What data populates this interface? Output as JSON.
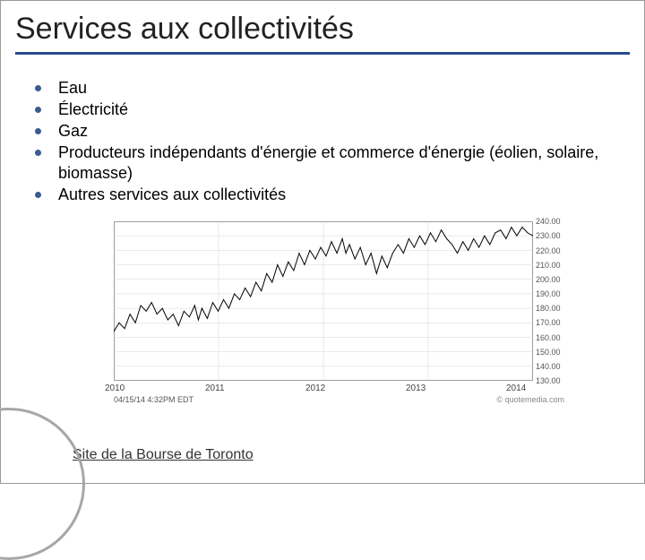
{
  "title": "Services aux collectivités",
  "bullets": [
    "Eau",
    "Électricité",
    "Gaz",
    "Producteurs indépendants d'énergie et commerce d'énergie (éolien, solaire, biomasse)",
    "Autres services aux collectivités"
  ],
  "footer_link": "Site de la Bourse de Toronto",
  "chart": {
    "type": "line",
    "ylim": [
      130,
      240
    ],
    "ytick_step": 10,
    "yticks": [
      "240.00",
      "230.00",
      "220.00",
      "210.00",
      "200.00",
      "190.00",
      "180.00",
      "170.00",
      "160.00",
      "150.00",
      "140.00",
      "130.00"
    ],
    "xticks": [
      "2010",
      "2011",
      "2012",
      "2013",
      "2014"
    ],
    "timestamp": "04/15/14 4:32PM EDT",
    "source": "© quotemedia.com",
    "background_color": "#ffffff",
    "border_color": "#888888",
    "grid_color": "#d6d6d6",
    "line_color": "#000000",
    "line_width": 1,
    "axis_font_size": 9,
    "series": [
      [
        0,
        164
      ],
      [
        6,
        170
      ],
      [
        12,
        166
      ],
      [
        18,
        176
      ],
      [
        24,
        170
      ],
      [
        30,
        182
      ],
      [
        36,
        178
      ],
      [
        42,
        184
      ],
      [
        48,
        176
      ],
      [
        54,
        180
      ],
      [
        60,
        172
      ],
      [
        66,
        176
      ],
      [
        72,
        168
      ],
      [
        78,
        178
      ],
      [
        84,
        174
      ],
      [
        90,
        182
      ],
      [
        94,
        172
      ],
      [
        98,
        180
      ],
      [
        104,
        173
      ],
      [
        110,
        184
      ],
      [
        116,
        178
      ],
      [
        122,
        186
      ],
      [
        128,
        180
      ],
      [
        134,
        190
      ],
      [
        140,
        186
      ],
      [
        146,
        194
      ],
      [
        152,
        188
      ],
      [
        158,
        198
      ],
      [
        164,
        192
      ],
      [
        170,
        204
      ],
      [
        176,
        198
      ],
      [
        182,
        210
      ],
      [
        188,
        202
      ],
      [
        194,
        212
      ],
      [
        200,
        206
      ],
      [
        206,
        218
      ],
      [
        212,
        210
      ],
      [
        218,
        220
      ],
      [
        224,
        214
      ],
      [
        230,
        222
      ],
      [
        236,
        216
      ],
      [
        242,
        226
      ],
      [
        248,
        218
      ],
      [
        254,
        228
      ],
      [
        258,
        218
      ],
      [
        262,
        224
      ],
      [
        268,
        214
      ],
      [
        274,
        222
      ],
      [
        280,
        210
      ],
      [
        286,
        218
      ],
      [
        292,
        204
      ],
      [
        298,
        216
      ],
      [
        304,
        208
      ],
      [
        310,
        218
      ],
      [
        316,
        224
      ],
      [
        322,
        218
      ],
      [
        328,
        228
      ],
      [
        334,
        222
      ],
      [
        340,
        230
      ],
      [
        346,
        224
      ],
      [
        352,
        232
      ],
      [
        358,
        226
      ],
      [
        364,
        234
      ],
      [
        370,
        228
      ],
      [
        376,
        224
      ],
      [
        382,
        218
      ],
      [
        388,
        226
      ],
      [
        394,
        220
      ],
      [
        400,
        228
      ],
      [
        406,
        222
      ],
      [
        412,
        230
      ],
      [
        418,
        224
      ],
      [
        424,
        232
      ],
      [
        430,
        234
      ],
      [
        436,
        228
      ],
      [
        442,
        236
      ],
      [
        448,
        230
      ],
      [
        454,
        236
      ],
      [
        460,
        232
      ],
      [
        466,
        230
      ]
    ]
  },
  "colors": {
    "title_rule": "#2b4a8f",
    "bullet": "#3c5b90",
    "corner_arc": "#a7a7a7"
  }
}
